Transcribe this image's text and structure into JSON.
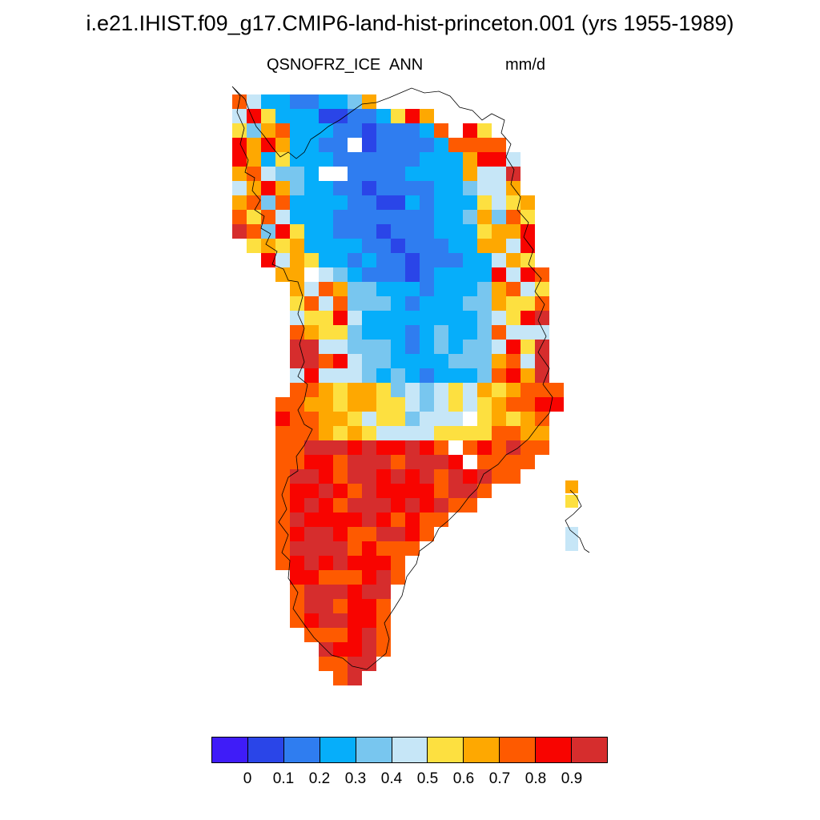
{
  "title": "i.e21.IHIST.f09_g17.CMIP6-land-hist-princeton.001 (yrs 1955-1989)",
  "subtitle_left": "QSNOFRZ_ICE",
  "subtitle_center": "ANN",
  "subtitle_right": "mm/d",
  "colorbar": {
    "colors": [
      "#3f1cf8",
      "#2a45e8",
      "#2f7df0",
      "#06aefa",
      "#78c6ef",
      "#c6e6f7",
      "#fde040",
      "#fea801",
      "#fe5a00",
      "#f80400",
      "#d62d2d"
    ],
    "labels": [
      "0",
      "0.1",
      "0.2",
      "0.3",
      "0.4",
      "0.5",
      "0.6",
      "0.7",
      "0.8",
      "0.9"
    ]
  }
}
